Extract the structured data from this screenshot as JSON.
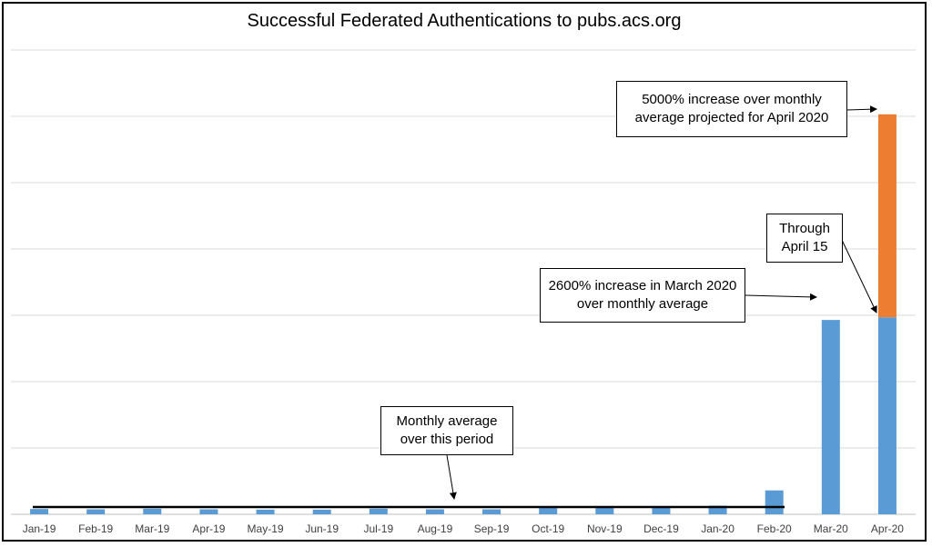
{
  "chart_data": {
    "type": "bar",
    "title": "Successful Federated Authentications to pubs.acs.org",
    "categories": [
      "Jan-19",
      "Feb-19",
      "Mar-19",
      "Apr-19",
      "May-19",
      "Jun-19",
      "Jul-19",
      "Aug-19",
      "Sep-19",
      "Oct-19",
      "Nov-19",
      "Dec-19",
      "Jan-20",
      "Feb-20",
      "Mar-20",
      "Apr-20"
    ],
    "series": [
      {
        "values": [
          0.8,
          0.75,
          0.85,
          0.75,
          0.7,
          0.7,
          0.85,
          0.75,
          0.75,
          0.95,
          1.0,
          1.0,
          1.3,
          3.6,
          29.3,
          29.7
        ],
        "color": "#5b9bd5"
      },
      {
        "values": [
          0,
          0,
          0,
          0,
          0,
          0,
          0,
          0,
          0,
          0,
          0,
          0,
          0,
          0,
          0,
          30.6
        ],
        "color": "#ed7d31"
      }
    ],
    "stacked": true,
    "average_line": {
      "value": 1.1,
      "color": "#000000"
    },
    "ylim": [
      0,
      70
    ],
    "y_gridlines": [
      10,
      20,
      30,
      40,
      50,
      60,
      70
    ],
    "y_tick_labels_shown": false,
    "annotations": [
      {
        "text": "Monthly average over this period"
      },
      {
        "text": "2600% increase in March 2020 over monthly average"
      },
      {
        "text": "Through April 15"
      },
      {
        "text": "5000% increase over monthly average projected for April 2020"
      }
    ]
  }
}
